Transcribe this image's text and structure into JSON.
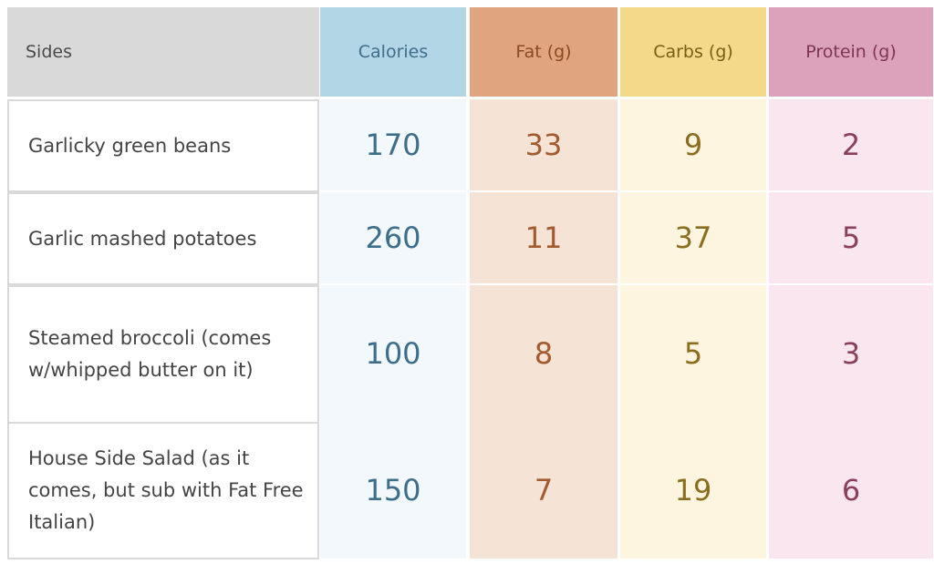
{
  "colors": {
    "sides_header_bg": "#d9d9d9",
    "calories_header_bg": "#b3d6e6",
    "calories_cell_bg": "#f2f8fc",
    "calories_text": "#3d6e8c",
    "fat_header_bg": "#e0a57e",
    "fat_cell_bg": "#f5e3d6",
    "fat_text": "#a25a2e",
    "carbs_header_bg": "#f4d98a",
    "carbs_cell_bg": "#fdf5e0",
    "carbs_text": "#8a6d1e",
    "protein_header_bg": "#dda2bb",
    "protein_cell_bg": "#f9e6ef",
    "protein_text": "#8c3e5e"
  },
  "headers": {
    "sides": "Sides",
    "calories": "Calories",
    "fat": "Fat (g)",
    "carbs": "Carbs (g)",
    "protein": "Protein (g)"
  },
  "rows": [
    {
      "side": "Garlicky green beans",
      "calories": "170",
      "fat": "33",
      "carbs": "9",
      "protein": "2"
    },
    {
      "side": "Garlic mashed potatoes",
      "calories": "260",
      "fat": "11",
      "carbs": "37",
      "protein": "5"
    },
    {
      "side": "Steamed broccoli (comes w/whipped butter on it)",
      "calories": "100",
      "fat": "8",
      "carbs": "5",
      "protein": "3"
    },
    {
      "side": "House Side Salad (as it comes, but sub with Fat Free Italian)",
      "calories": "150",
      "fat": "7",
      "carbs": "19",
      "protein": "6"
    }
  ]
}
